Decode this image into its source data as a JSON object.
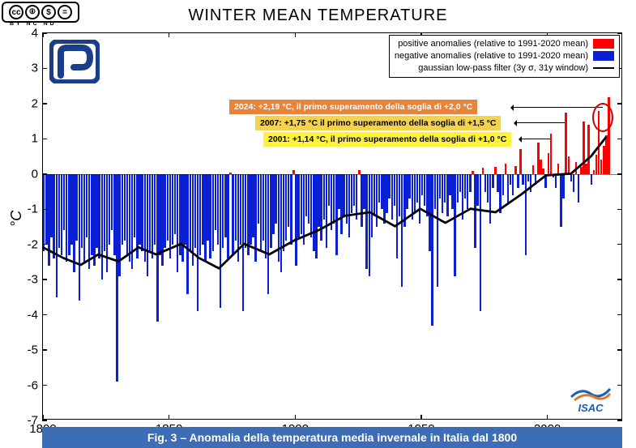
{
  "title": "WINTER MEAN TEMPERATURE",
  "cc": {
    "sub": "BY  NC  ND"
  },
  "y_axis": {
    "label": "°C",
    "min": -7,
    "max": 4,
    "ticks": [
      -7,
      -6,
      -5,
      -4,
      -3,
      -2,
      -1,
      0,
      1,
      2,
      3,
      4
    ]
  },
  "x_axis": {
    "min": 1800,
    "max": 2030,
    "ticks": [
      1800,
      1850,
      1900,
      1950,
      2000
    ]
  },
  "colors": {
    "positive": "#ff0000",
    "negative": "#0b1fd4",
    "smooth": "#000000",
    "caption_bg": "#3d6db5",
    "annot_2024": "#e8833a",
    "annot_2007": "#f6d24b",
    "annot_2001": "#fff23a",
    "cnr": "#1a3e8a",
    "isac_blue": "#1a5fb4",
    "isac_orange": "#d97a2e"
  },
  "legend": {
    "pos": "positive anomalies (relative to 1991-2020 mean)",
    "neg": "negative anomalies (relative to 1991-2020 mean)",
    "filt": "gaussian low-pass filter (3y σ, 31y window)"
  },
  "annotations": {
    "a2024": "2024: +2,19 °C, il primo superamento della soglia di +2,0 °C",
    "a2007": "2007: +1,75 °C il primo superamento della soglia di +1,5 °C",
    "a2001": "2001: +1,14 °C, il primo superamento della soglia di +1,0 °C"
  },
  "caption": "Fig. 3 – Anomalia della temperatura media invernale in Italia dal 1800",
  "isac_text": "ISAC",
  "bars": [
    [
      -2.2,
      -2.0,
      -2.6,
      -1.8,
      -2.4,
      -3.5,
      -2.1,
      -2.3,
      -1.6,
      -2.5,
      -2.3,
      -2.0,
      -2.8,
      -1.9,
      -3.6,
      -2.1,
      -2.5,
      -1.8,
      -2.7,
      -2.3
    ],
    [
      -2.6,
      -2.1,
      -2.4,
      -3.0,
      -2.2,
      -2.8,
      -2.0,
      -1.6,
      -2.3,
      -5.9,
      -2.9,
      -2.0,
      -1.9,
      -2.3,
      -2.5,
      -2.7,
      -1.8,
      -2.4,
      -2.0,
      -2.2
    ],
    [
      -2.5,
      -2.9,
      -2.2,
      -2.4,
      -2.0,
      -4.2,
      -2.3,
      -2.6,
      -2.1,
      -1.9,
      -2.4,
      -2.0,
      -1.7,
      -2.8,
      -2.3,
      -2.5,
      -2.0,
      -3.4,
      -2.2,
      -2.6
    ],
    [
      -2.1,
      -3.9,
      -2.3,
      -2.0,
      -2.5,
      -1.9,
      -2.4,
      -2.2,
      -1.6,
      -2.0,
      -3.8,
      -2.1,
      -1.8,
      -2.4,
      0.05,
      -2.3,
      -1.9,
      -2.5,
      -2.0,
      -3.9
    ],
    [
      -2.1,
      -2.3,
      -2.0,
      -1.8,
      -2.5,
      -1.4,
      -2.2,
      -1.9,
      -2.4,
      -3.4,
      -2.1,
      -1.7,
      -1.4,
      -2.5,
      -2.8,
      -2.2,
      -1.9,
      -1.5,
      -2.0,
      0.1
    ],
    [
      -2.6,
      -1.8,
      -1.7,
      -2.0,
      -1.2,
      -1.4,
      -1.8,
      -2.2,
      -2.4,
      -1.5,
      -1.9,
      -1.3,
      -2.1,
      -0.9,
      -1.6,
      -1.4,
      -2.3,
      -1.0,
      -1.7,
      -1.2
    ],
    [
      -1.4,
      -1.8,
      -1.1,
      -0.9,
      -1.3,
      0.12,
      -1.5,
      -1.0,
      -2.7,
      -2.9,
      -1.8,
      -1.2,
      -1.5,
      -0.8,
      -1.0,
      -1.4,
      -1.1,
      -0.7,
      -1.3,
      -0.9
    ],
    [
      -2.4,
      -1.2,
      -3.2,
      -1.5,
      -1.0,
      -0.7,
      -1.3,
      -1.1,
      -0.8,
      -1.4,
      -0.6,
      -0.9,
      -1.2,
      -2.2,
      -4.3,
      -1.0,
      -3.2,
      -0.7,
      -1.1,
      -0.8
    ],
    [
      -1.2,
      -0.6,
      -1.0,
      -2.9,
      -0.8,
      -0.5,
      -1.3,
      -0.7,
      -1.0,
      -0.5,
      0.08,
      -2.1,
      -0.9,
      -3.9,
      0.18,
      -0.5,
      -0.8,
      -1.4,
      -0.4,
      0.2
    ],
    [
      -0.5,
      -1.1,
      -0.6,
      0.3,
      -0.8,
      -0.3,
      -0.6,
      0.22,
      -0.4,
      0.7,
      -0.3,
      -2.3,
      -0.2,
      -0.5,
      0.25,
      -0.3,
      0.9,
      0.4,
      0.15,
      -0.4
    ],
    [
      0.6,
      1.14,
      -0.1,
      -0.4,
      0.3,
      -1.5,
      -0.7,
      1.75,
      0.5,
      -0.2,
      -0.5,
      0.35,
      -0.8,
      0.2,
      1.5,
      0.3,
      1.4,
      -0.3,
      0.1,
      0.55
    ],
    [
      1.8,
      0.4,
      0.8,
      1.1,
      2.19
    ]
  ],
  "smooth_pts": [
    [
      1800,
      -2.1
    ],
    [
      1808,
      -2.4
    ],
    [
      1815,
      -2.6
    ],
    [
      1822,
      -2.3
    ],
    [
      1830,
      -2.5
    ],
    [
      1838,
      -2.1
    ],
    [
      1845,
      -2.3
    ],
    [
      1855,
      -2.0
    ],
    [
      1862,
      -2.4
    ],
    [
      1870,
      -2.7
    ],
    [
      1880,
      -2.0
    ],
    [
      1890,
      -2.3
    ],
    [
      1900,
      -1.9
    ],
    [
      1910,
      -1.6
    ],
    [
      1920,
      -1.2
    ],
    [
      1930,
      -1.1
    ],
    [
      1940,
      -1.5
    ],
    [
      1950,
      -1.0
    ],
    [
      1960,
      -1.4
    ],
    [
      1970,
      -1.0
    ],
    [
      1980,
      -1.1
    ],
    [
      1990,
      -0.6
    ],
    [
      2000,
      -0.05
    ],
    [
      2010,
      0.0
    ],
    [
      2018,
      0.5
    ],
    [
      2024,
      1.05
    ]
  ]
}
